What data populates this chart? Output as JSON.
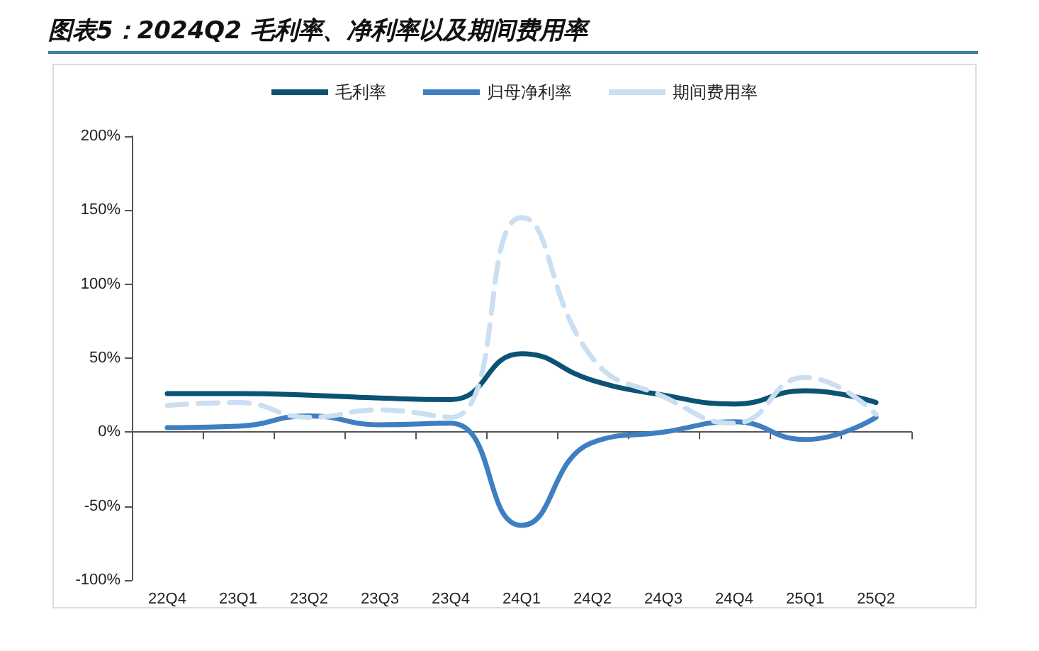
{
  "chart_data": {
    "type": "line",
    "title": "图表5：2024Q2 毛利率、净利率以及期间费用率",
    "categories": [
      "22Q4",
      "23Q1",
      "23Q2",
      "23Q3",
      "23Q4",
      "24Q1",
      "24Q2",
      "24Q3",
      "24Q4",
      "25Q1",
      "25Q2"
    ],
    "series": [
      {
        "name": "毛利率",
        "color": "#0b5274",
        "line_style": "solid",
        "values": [
          26,
          26,
          25,
          23,
          22,
          53,
          35,
          25,
          19,
          28,
          20
        ]
      },
      {
        "name": "归母净利率",
        "color": "#3f7fc1",
        "line_style": "solid",
        "values": [
          3,
          4,
          11,
          5,
          6,
          -63,
          -7,
          0,
          7,
          -5,
          10
        ]
      },
      {
        "name": "期间费用率",
        "color": "#cadff2",
        "line_style": "dashed",
        "values": [
          18,
          20,
          10,
          15,
          10,
          145,
          50,
          24,
          6,
          37,
          12
        ]
      }
    ],
    "ylim": [
      -100,
      200
    ],
    "yticks": [
      {
        "value": -100,
        "label": "-100%"
      },
      {
        "value": -50,
        "label": "-50%"
      },
      {
        "value": 0,
        "label": "0%"
      },
      {
        "value": 50,
        "label": "50%"
      },
      {
        "value": 100,
        "label": "100%"
      },
      {
        "value": 150,
        "label": "150%"
      },
      {
        "value": 200,
        "label": "200%"
      }
    ],
    "legend": "top",
    "marker": "none"
  }
}
